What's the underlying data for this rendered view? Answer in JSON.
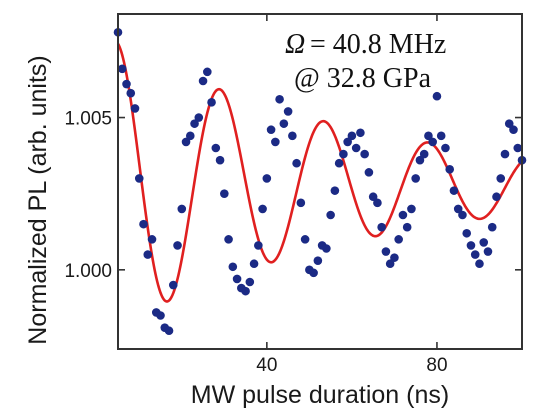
{
  "chart_data": {
    "type": "scatter",
    "xlabel": "MW pulse duration (ns)",
    "ylabel": "Normalized PL (arb. units)",
    "xlim": [
      5,
      100
    ],
    "ylim": [
      0.9974,
      1.0084
    ],
    "x_ticks": [
      40,
      80
    ],
    "y_ticks": [
      1.0,
      1.005
    ],
    "x_tick_labels": [
      "40",
      "80"
    ],
    "y_tick_labels": [
      "1.000",
      "1.005"
    ],
    "annotation": {
      "symbol": "Ω",
      "equals_value": "= 40.8 MHz",
      "pressure": "@ 32.8 GPa"
    },
    "colors": {
      "points": "#1b2a85",
      "fit": "#e02020",
      "axis": "#333333"
    },
    "grid": false,
    "series": [
      {
        "type": "scatter",
        "x": [
          5.0,
          6.0,
          7.0,
          8.0,
          9.0,
          10.0,
          11.0,
          12.0,
          13.0,
          14.0,
          15.0,
          16.0,
          17.0,
          18.0,
          19.0,
          20.0,
          21.0,
          22.0,
          23.0,
          24.0,
          25.0,
          26.0,
          27.0,
          28.0,
          29.0,
          30.0,
          31.0,
          32.0,
          33.0,
          34.0,
          35.0,
          36.0,
          37.0,
          38.0,
          39.0,
          40.0,
          41.0,
          42.0,
          43.0,
          44.0,
          45.0,
          46.0,
          47.0,
          48.0,
          49.0,
          50.0,
          51.0,
          52.0,
          53.0,
          54.0,
          55.0,
          56.0,
          57.0,
          58.0,
          59.0,
          60.0,
          61.0,
          62.0,
          63.0,
          64.0,
          65.0,
          66.0,
          67.0,
          68.0,
          69.0,
          70.0,
          71.0,
          72.0,
          73.0,
          74.0,
          75.0,
          76.0,
          77.0,
          78.0,
          79.0,
          80.0,
          81.0,
          82.0,
          83.0,
          84.0,
          85.0,
          86.0,
          87.0,
          88.0,
          89.0,
          90.0,
          91.0,
          92.0,
          93.0,
          94.0,
          95.0,
          96.0,
          97.0,
          98.0,
          99.0,
          100.0
        ],
        "y": [
          1.0078,
          1.0066,
          1.0061,
          1.0058,
          1.0053,
          1.003,
          1.0015,
          1.0005,
          1.001,
          0.9986,
          0.9985,
          0.9981,
          0.998,
          0.9995,
          1.0008,
          1.002,
          1.0042,
          1.0044,
          1.0048,
          1.005,
          1.0062,
          1.0065,
          1.0055,
          1.004,
          1.0036,
          1.0025,
          1.001,
          1.0001,
          0.9997,
          0.9994,
          0.9993,
          0.9996,
          1.0002,
          1.0008,
          1.002,
          1.003,
          1.0046,
          1.0042,
          1.0056,
          1.0048,
          1.0052,
          1.0044,
          1.0035,
          1.0022,
          1.001,
          1.0,
          0.9999,
          1.0003,
          1.0008,
          1.0007,
          1.0018,
          1.0026,
          1.0035,
          1.0038,
          1.0042,
          1.0044,
          1.004,
          1.0045,
          1.0038,
          1.0032,
          1.0024,
          1.0022,
          1.0014,
          1.0006,
          1.0002,
          1.0004,
          1.001,
          1.0018,
          1.0014,
          1.002,
          1.003,
          1.0036,
          1.0038,
          1.0044,
          1.0042,
          1.0057,
          1.0044,
          1.004,
          1.0033,
          1.0026,
          1.002,
          1.0018,
          1.0012,
          1.0008,
          1.0005,
          1.0002,
          1.0009,
          1.0006,
          1.0014,
          1.0024,
          1.003,
          1.0038,
          1.0048,
          1.0046,
          1.004,
          1.0036
        ]
      },
      {
        "type": "line",
        "fit": {
          "offset": 1.0028,
          "amplitude": 0.0047,
          "decay_ns": 60,
          "frequency_MHz": 40.8,
          "time_offset_ns": 4.5
        }
      }
    ]
  }
}
